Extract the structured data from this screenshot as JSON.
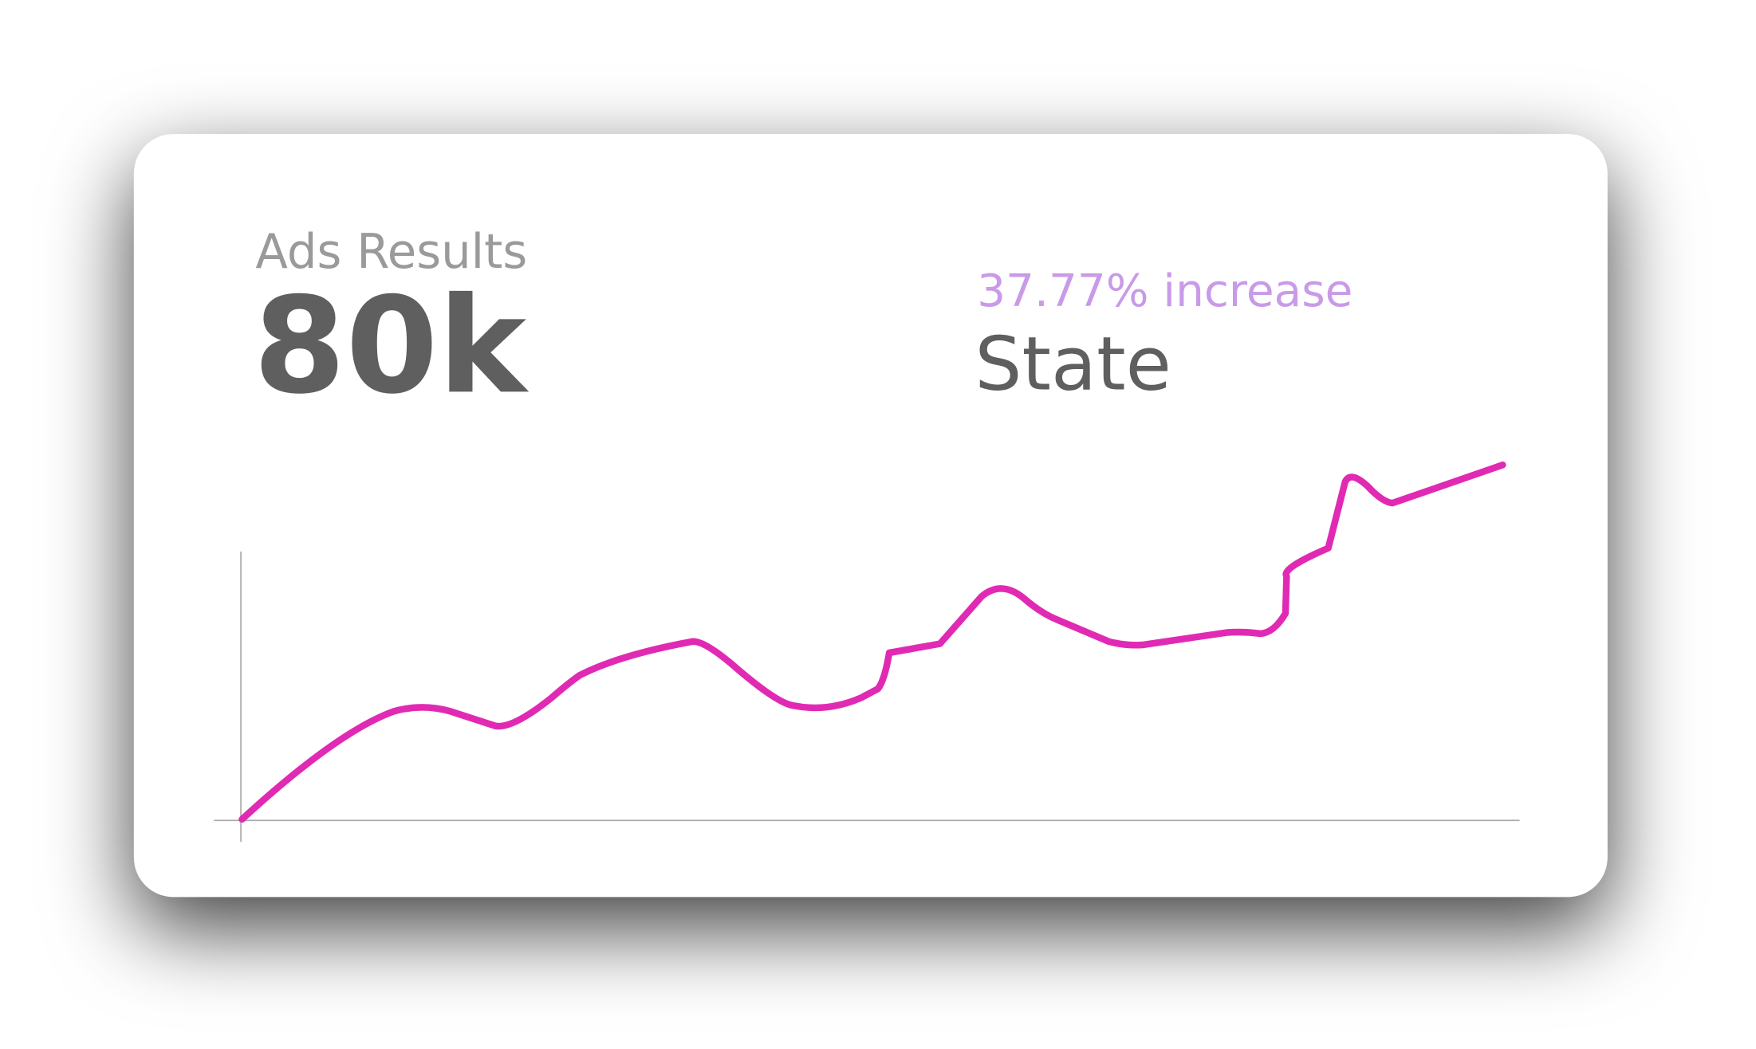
{
  "card": {
    "label": "Ads Results",
    "value": "80k",
    "change": "37.77% increase",
    "change_label": "State"
  }
}
